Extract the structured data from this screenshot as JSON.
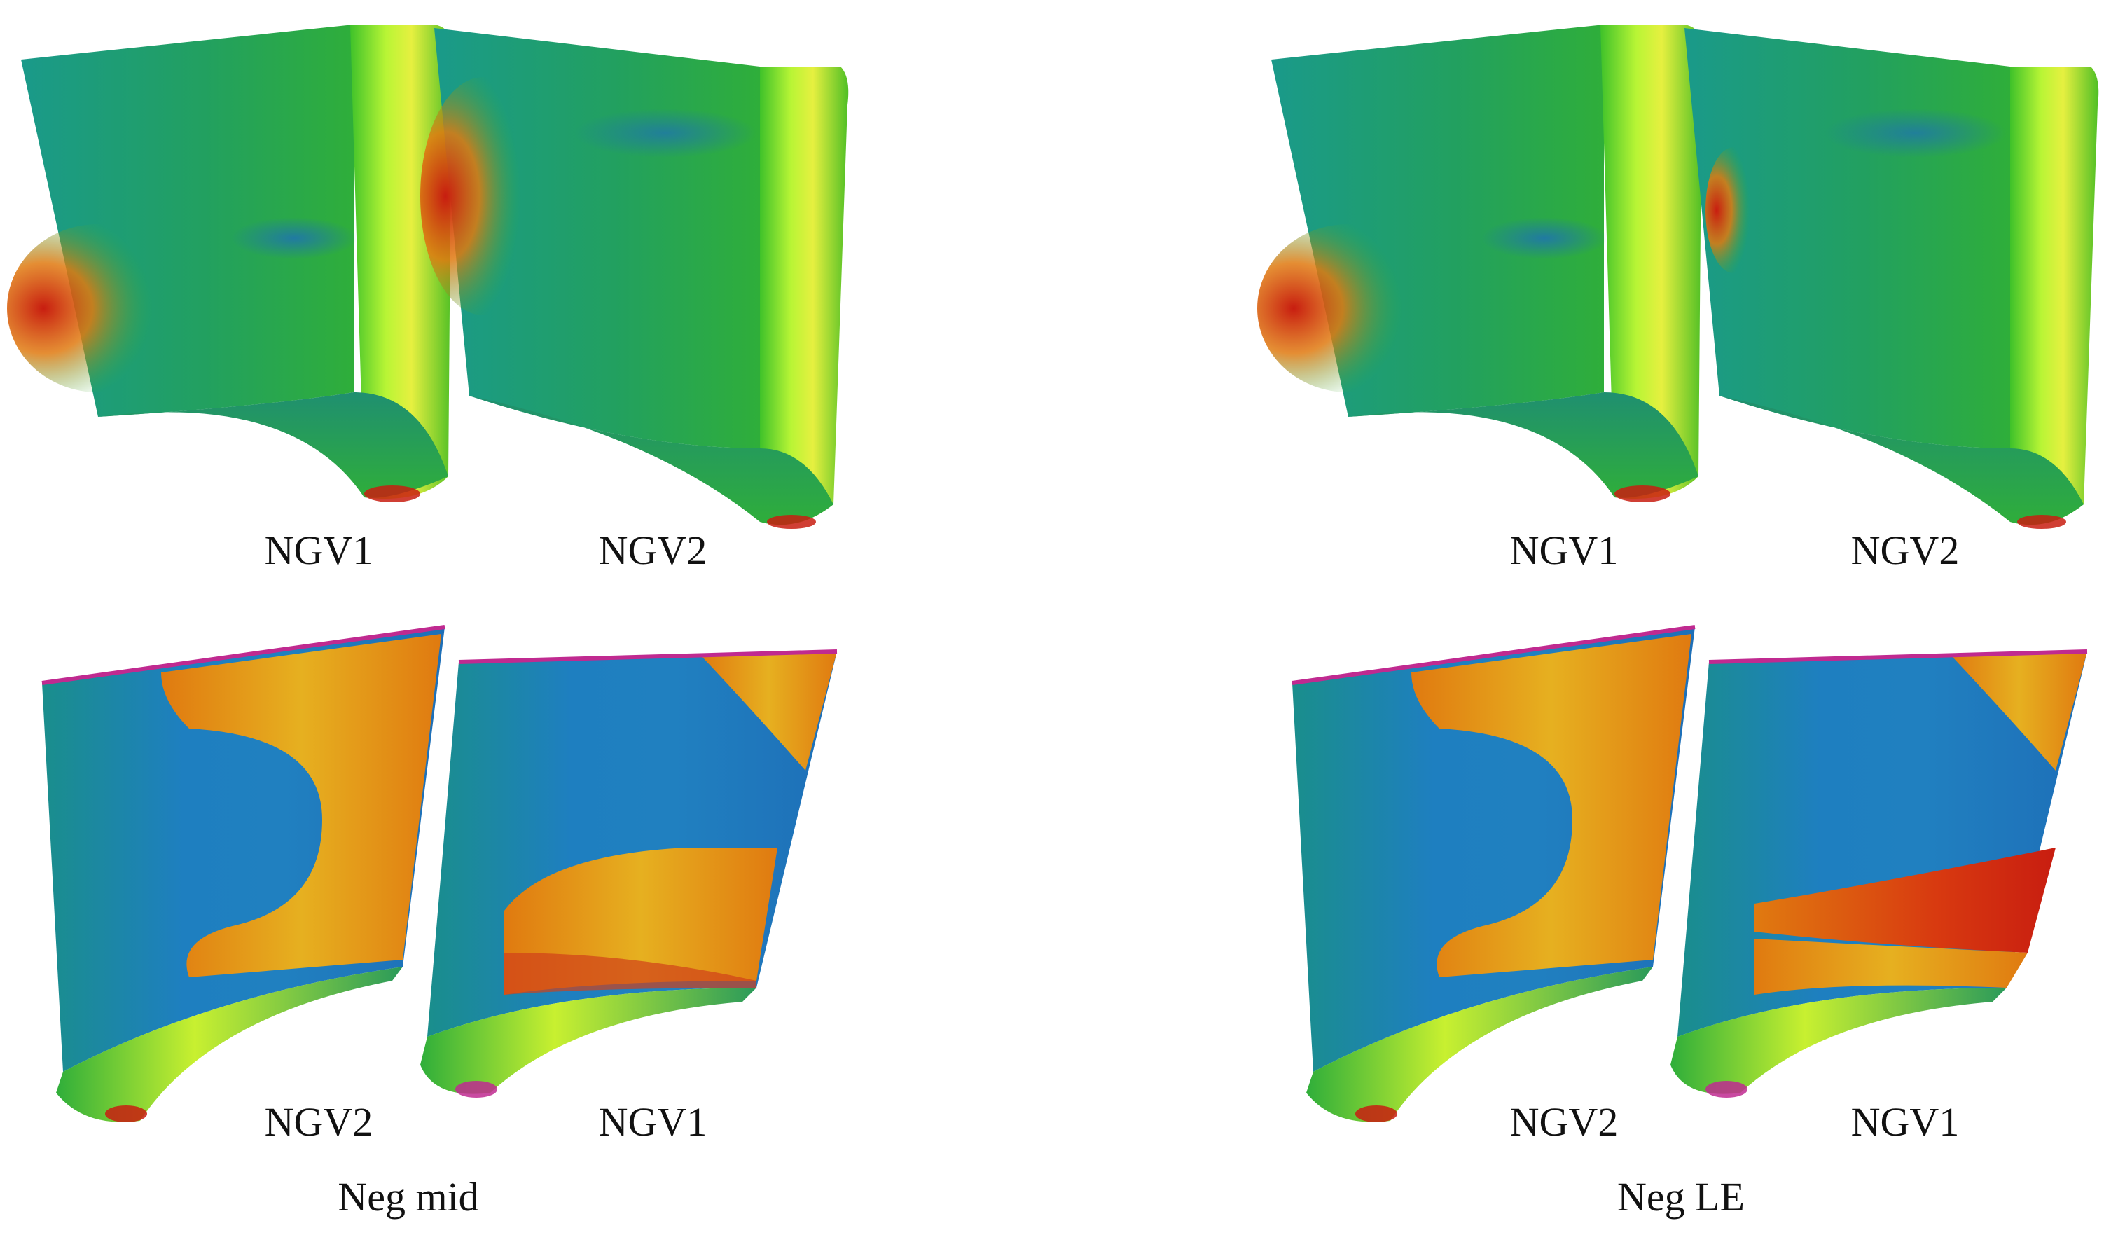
{
  "panels": [
    {
      "id": "neg-mid",
      "caption": "Neg mid",
      "rows": [
        {
          "labels": [
            "NGV1",
            "NGV2"
          ]
        },
        {
          "labels": [
            "NGV2",
            "NGV1"
          ]
        }
      ]
    },
    {
      "id": "neg-le",
      "caption": "Neg LE",
      "rows": [
        {
          "labels": [
            "NGV1",
            "NGV2"
          ]
        },
        {
          "labels": [
            "NGV2",
            "NGV1"
          ]
        }
      ]
    }
  ],
  "colors": {
    "background": "#ffffff",
    "low_blue": "#1e6fb8",
    "teal": "#1a9a8a",
    "green": "#2fae3a",
    "lime": "#a8f02a",
    "yellow": "#e6d21a",
    "orange": "#e07a10",
    "red": "#c81d10",
    "magenta": "#c02a90"
  }
}
